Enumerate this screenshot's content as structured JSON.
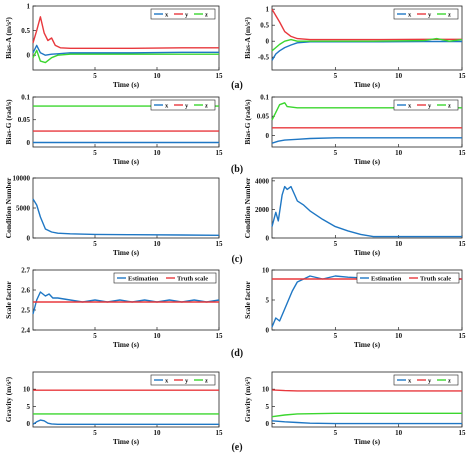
{
  "figure": {
    "panel_labels": [
      "(a)",
      "(b)",
      "(c)",
      "(d)",
      "(e)"
    ]
  },
  "chart_data": [
    {
      "id": "a-left",
      "type": "line",
      "ylabel": "Bias-A (m/s²)",
      "xlabel": "Time (s)",
      "xlim": [
        0,
        15
      ],
      "ylim": [
        -0.3,
        1.0
      ],
      "xticks": [
        5,
        10,
        15
      ],
      "xtick_labels": [
        "5",
        "10",
        "15"
      ],
      "yticks": [
        0,
        0.5,
        1
      ],
      "ytick_labels": [
        "0",
        "0.5",
        "1"
      ],
      "legend": {
        "position": "top-right",
        "entries": [
          "x",
          "y",
          "z"
        ]
      },
      "series": [
        {
          "name": "x",
          "color": "#1f77c4",
          "x": [
            0,
            0.3,
            0.6,
            1,
            1.5,
            2,
            3,
            5,
            8,
            12,
            15
          ],
          "y": [
            0.05,
            0.2,
            0.05,
            0.0,
            0.02,
            0.03,
            0.05,
            0.05,
            0.05,
            0.06,
            0.06
          ]
        },
        {
          "name": "y",
          "color": "#e8383d",
          "x": [
            0,
            0.3,
            0.6,
            0.9,
            1.2,
            1.5,
            1.8,
            2.2,
            3,
            5,
            8,
            12,
            15
          ],
          "y": [
            0.25,
            0.5,
            0.78,
            0.45,
            0.3,
            0.35,
            0.2,
            0.15,
            0.14,
            0.14,
            0.14,
            0.15,
            0.15
          ]
        },
        {
          "name": "z",
          "color": "#3bd62f",
          "x": [
            0,
            0.3,
            0.6,
            1,
            1.5,
            2,
            3,
            5,
            8,
            12,
            15
          ],
          "y": [
            -0.05,
            0.1,
            -0.12,
            -0.15,
            -0.05,
            0.0,
            0.02,
            0.02,
            0.02,
            0.02,
            0.02
          ]
        }
      ]
    },
    {
      "id": "a-right",
      "type": "line",
      "ylabel": "Bias-A (m/s²)",
      "xlabel": "Time (s)",
      "xlim": [
        0,
        15
      ],
      "ylim": [
        -0.9,
        1.1
      ],
      "xticks": [
        5,
        10,
        15
      ],
      "xtick_labels": [
        "5",
        "10",
        "15"
      ],
      "yticks": [
        -0.5,
        0,
        0.5,
        1
      ],
      "ytick_labels": [
        "-0.5",
        "0",
        "0.5",
        "1"
      ],
      "legend": {
        "position": "top-right",
        "entries": [
          "x",
          "y",
          "z"
        ]
      },
      "series": [
        {
          "name": "x",
          "color": "#1f77c4",
          "x": [
            0,
            0.3,
            0.6,
            1,
            1.5,
            2,
            3,
            5,
            8,
            12,
            15
          ],
          "y": [
            -0.6,
            -0.4,
            -0.3,
            -0.2,
            -0.12,
            -0.05,
            -0.02,
            -0.02,
            -0.02,
            -0.01,
            -0.01
          ]
        },
        {
          "name": "y",
          "color": "#e8383d",
          "x": [
            0,
            0.3,
            0.6,
            1,
            1.5,
            2,
            3,
            5,
            8,
            12,
            15
          ],
          "y": [
            1.0,
            0.8,
            0.6,
            0.3,
            0.15,
            0.08,
            0.05,
            0.05,
            0.05,
            0.06,
            0.06
          ]
        },
        {
          "name": "z",
          "color": "#3bd62f",
          "x": [
            0,
            0.3,
            0.6,
            1,
            1.5,
            2,
            3,
            5,
            8,
            12,
            13,
            14,
            15
          ],
          "y": [
            -0.3,
            -0.2,
            -0.1,
            0.0,
            0.05,
            0.0,
            0.0,
            0.0,
            0.0,
            0.02,
            0.08,
            0.0,
            0.05
          ]
        }
      ]
    },
    {
      "id": "b-left",
      "type": "line",
      "ylabel": "Bias-G (rad/s)",
      "xlabel": "Time (s)",
      "xlim": [
        0,
        15
      ],
      "ylim": [
        -0.01,
        0.1
      ],
      "xticks": [
        5,
        10,
        15
      ],
      "xtick_labels": [
        "5",
        "10",
        "15"
      ],
      "yticks": [
        0,
        0.05,
        0.1
      ],
      "ytick_labels": [
        "0",
        "0.05",
        "0.1"
      ],
      "legend": {
        "position": "top-right",
        "entries": [
          "x",
          "y",
          "z"
        ]
      },
      "series": [
        {
          "name": "x",
          "color": "#1f77c4",
          "x": [
            0,
            15
          ],
          "y": [
            0.0,
            0.0
          ]
        },
        {
          "name": "y",
          "color": "#e8383d",
          "x": [
            0,
            15
          ],
          "y": [
            0.025,
            0.025
          ]
        },
        {
          "name": "z",
          "color": "#3bd62f",
          "x": [
            0,
            15
          ],
          "y": [
            0.08,
            0.08
          ]
        }
      ]
    },
    {
      "id": "b-right",
      "type": "line",
      "ylabel": "Bias-G (rad/s)",
      "xlabel": "Time (s)",
      "xlim": [
        0,
        15
      ],
      "ylim": [
        -0.03,
        0.1
      ],
      "xticks": [
        5,
        10,
        15
      ],
      "xtick_labels": [
        "5",
        "10",
        "15"
      ],
      "yticks": [
        0,
        0.05,
        0.1
      ],
      "ytick_labels": [
        "0",
        "0.05",
        "0.1"
      ],
      "legend": {
        "position": "top-right",
        "entries": [
          "x",
          "y",
          "z"
        ]
      },
      "series": [
        {
          "name": "x",
          "color": "#1f77c4",
          "x": [
            0,
            0.5,
            1,
            2,
            3,
            5,
            8,
            15
          ],
          "y": [
            -0.02,
            -0.015,
            -0.012,
            -0.01,
            -0.008,
            -0.006,
            -0.006,
            -0.006
          ]
        },
        {
          "name": "y",
          "color": "#e8383d",
          "x": [
            0,
            15
          ],
          "y": [
            0.02,
            0.02
          ]
        },
        {
          "name": "z",
          "color": "#3bd62f",
          "x": [
            0,
            0.3,
            0.6,
            1,
            1.2,
            2,
            5,
            15
          ],
          "y": [
            0.04,
            0.06,
            0.08,
            0.085,
            0.075,
            0.072,
            0.072,
            0.072
          ]
        }
      ]
    },
    {
      "id": "c-left",
      "type": "line",
      "ylabel": "Condition Number",
      "xlabel": "Time (s)",
      "xlim": [
        0,
        15
      ],
      "ylim": [
        0,
        10000
      ],
      "xticks": [
        5,
        10,
        15
      ],
      "xtick_labels": [
        "5",
        "10",
        "15"
      ],
      "yticks": [
        0,
        5000,
        10000
      ],
      "ytick_labels": [
        "0",
        "5000",
        "10000"
      ],
      "series": [
        {
          "name": "",
          "color": "#1f77c4",
          "x": [
            0,
            0.3,
            0.6,
            1,
            1.5,
            2,
            3,
            5,
            8,
            12,
            15
          ],
          "y": [
            6500,
            5500,
            3500,
            1500,
            1000,
            800,
            700,
            600,
            550,
            500,
            450
          ]
        }
      ]
    },
    {
      "id": "c-right",
      "type": "line",
      "ylabel": "Condition Number",
      "xlabel": "Time (s)",
      "xlim": [
        0,
        15
      ],
      "ylim": [
        0,
        4200
      ],
      "xticks": [
        5,
        10,
        15
      ],
      "xtick_labels": [
        "5",
        "10",
        "15"
      ],
      "yticks": [
        0,
        2000,
        4000
      ],
      "ytick_labels": [
        "0",
        "2000",
        "4000"
      ],
      "series": [
        {
          "name": "",
          "color": "#1f77c4",
          "x": [
            0,
            0.3,
            0.5,
            0.8,
            1.0,
            1.2,
            1.5,
            1.8,
            2.0,
            2.5,
            3,
            4,
            5,
            6,
            7,
            8,
            9,
            10,
            12,
            15
          ],
          "y": [
            800,
            1800,
            1200,
            3000,
            3600,
            3400,
            3600,
            3000,
            2600,
            2300,
            1900,
            1300,
            800,
            500,
            250,
            100,
            100,
            100,
            100,
            100
          ]
        }
      ]
    },
    {
      "id": "d-left",
      "type": "line",
      "ylabel": "Scale factor",
      "xlabel": "Time (s)",
      "xlim": [
        0,
        15
      ],
      "ylim": [
        2.4,
        2.7
      ],
      "xticks": [
        5,
        10,
        15
      ],
      "xtick_labels": [
        "5",
        "10",
        "15"
      ],
      "yticks": [
        2.4,
        2.5,
        2.6,
        2.7
      ],
      "ytick_labels": [
        "2.4",
        "2.5",
        "2.6",
        "2.7"
      ],
      "legend": {
        "position": "top-right",
        "entries": [
          "Estimation",
          "Truth scale"
        ]
      },
      "series": [
        {
          "name": "Estimation",
          "color": "#1f77c4",
          "x": [
            0,
            0.3,
            0.6,
            1,
            1.3,
            1.6,
            2,
            3,
            4,
            5,
            6,
            7,
            8,
            9,
            10,
            11,
            12,
            13,
            14,
            15
          ],
          "y": [
            2.48,
            2.55,
            2.59,
            2.57,
            2.58,
            2.56,
            2.56,
            2.55,
            2.54,
            2.55,
            2.54,
            2.55,
            2.54,
            2.55,
            2.54,
            2.55,
            2.54,
            2.55,
            2.54,
            2.55
          ]
        },
        {
          "name": "Truth scale",
          "color": "#e8383d",
          "x": [
            0,
            15
          ],
          "y": [
            2.54,
            2.54
          ]
        }
      ]
    },
    {
      "id": "d-right",
      "type": "line",
      "ylabel": "Scale factor",
      "xlabel": "Time (s)",
      "xlim": [
        0,
        15
      ],
      "ylim": [
        0,
        10
      ],
      "xticks": [
        5,
        10,
        15
      ],
      "xtick_labels": [
        "5",
        "10",
        "15"
      ],
      "yticks": [
        0,
        5,
        10
      ],
      "ytick_labels": [
        "0",
        "5",
        "10"
      ],
      "legend": {
        "position": "top-right",
        "entries": [
          "Estimation",
          "Truth scale"
        ]
      },
      "series": [
        {
          "name": "Estimation",
          "color": "#1f77c4",
          "x": [
            0,
            0.3,
            0.6,
            1.0,
            1.3,
            1.6,
            2.0,
            2.5,
            3,
            4,
            5,
            6,
            8,
            10,
            12,
            15
          ],
          "y": [
            0.5,
            2,
            1.5,
            3.5,
            5,
            6.5,
            8,
            8.5,
            9.0,
            8.5,
            9.0,
            8.8,
            8.6,
            8.5,
            8.5,
            8.5
          ]
        },
        {
          "name": "Truth scale",
          "color": "#e8383d",
          "x": [
            0,
            15
          ],
          "y": [
            8.5,
            8.5
          ]
        }
      ]
    },
    {
      "id": "e-left",
      "type": "line",
      "ylabel": "Gravity (m/s²)",
      "xlabel": "Time (s)",
      "xlim": [
        0,
        15
      ],
      "ylim": [
        -1,
        15
      ],
      "xticks": [
        5,
        10,
        15
      ],
      "xtick_labels": [
        "5",
        "10",
        "15"
      ],
      "yticks": [
        0,
        5,
        10
      ],
      "ytick_labels": [
        "0",
        "5",
        "10"
      ],
      "legend": {
        "position": "top-right",
        "entries": [
          "x",
          "y",
          "z"
        ]
      },
      "series": [
        {
          "name": "x",
          "color": "#1f77c4",
          "x": [
            0,
            0.3,
            0.6,
            0.9,
            1.2,
            1.5,
            2,
            3,
            5,
            15
          ],
          "y": [
            -0.2,
            0.5,
            1.0,
            0.8,
            0.1,
            -0.1,
            -0.2,
            -0.2,
            -0.2,
            -0.2
          ]
        },
        {
          "name": "y",
          "color": "#e8383d",
          "x": [
            0,
            15
          ],
          "y": [
            9.7,
            9.7
          ]
        },
        {
          "name": "z",
          "color": "#3bd62f",
          "x": [
            0,
            15
          ],
          "y": [
            2.8,
            2.8
          ]
        }
      ]
    },
    {
      "id": "e-right",
      "type": "line",
      "ylabel": "Gravity (m/s²)",
      "xlabel": "Time (s)",
      "xlim": [
        0,
        15
      ],
      "ylim": [
        -1,
        15
      ],
      "xticks": [
        5,
        10,
        15
      ],
      "xtick_labels": [
        "5",
        "10",
        "15"
      ],
      "yticks": [
        0,
        5,
        10
      ],
      "ytick_labels": [
        "0",
        "5",
        "10"
      ],
      "legend": {
        "position": "top-right",
        "entries": [
          "x",
          "y",
          "z"
        ]
      },
      "series": [
        {
          "name": "x",
          "color": "#1f77c4",
          "x": [
            0,
            1,
            2,
            3,
            5,
            8,
            12,
            15
          ],
          "y": [
            0.8,
            0.5,
            0.3,
            0.1,
            0.0,
            0.0,
            0.0,
            0.0
          ]
        },
        {
          "name": "y",
          "color": "#e8383d",
          "x": [
            0,
            1,
            2,
            5,
            15
          ],
          "y": [
            9.8,
            9.6,
            9.5,
            9.5,
            9.5
          ]
        },
        {
          "name": "z",
          "color": "#3bd62f",
          "x": [
            0,
            1,
            2,
            5,
            10,
            15
          ],
          "y": [
            2.0,
            2.5,
            2.8,
            3.0,
            3.0,
            3.0
          ]
        }
      ]
    }
  ]
}
